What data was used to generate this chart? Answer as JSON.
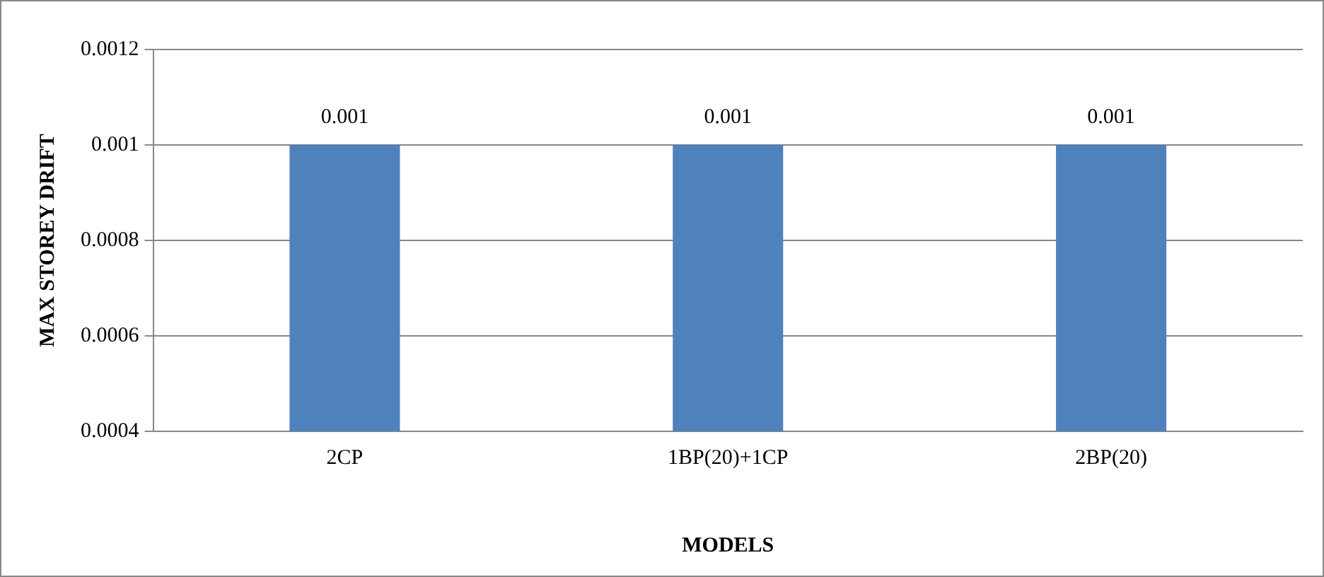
{
  "chart_data": {
    "type": "bar",
    "xlabel": "MODELS",
    "ylabel": "MAX STOREY DRIFT",
    "categories": [
      "2CP",
      "1BP(20)+1CP",
      "2BP(20)"
    ],
    "values": [
      0.001,
      0.001,
      0.001
    ],
    "color": "#4f81bd",
    "ylim": [
      0.0004,
      0.0012
    ],
    "yticks": [
      0.0004,
      0.0006,
      0.0008,
      0.001,
      0.0012
    ],
    "grid": "y",
    "legend": false,
    "data_labels": true
  }
}
